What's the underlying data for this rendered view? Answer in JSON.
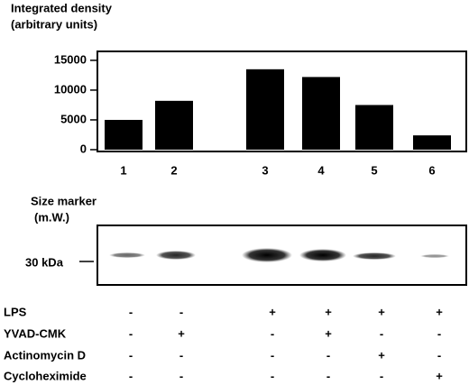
{
  "chart_data": {
    "type": "bar",
    "title": "Integrated density",
    "subtitle": "(arbitrary units)",
    "categories": [
      "1",
      "2",
      "3",
      "4",
      "5",
      "6"
    ],
    "values": [
      5000,
      8200,
      13500,
      12200,
      7500,
      2400
    ],
    "color": "#000000",
    "ylim": [
      0,
      16500
    ],
    "yticks": [
      0,
      5000,
      10000,
      15000
    ],
    "grid": false
  },
  "blot": {
    "title": "Size marker",
    "subtitle": "(m.W.)",
    "marker": "30 kDa"
  },
  "treatments": [
    {
      "name": "LPS",
      "values": [
        "-",
        "-",
        "+",
        "+",
        "+",
        "+"
      ]
    },
    {
      "name": "YVAD-CMK",
      "values": [
        "-",
        "+",
        "-",
        "+",
        "-",
        "-"
      ]
    },
    {
      "name": "Actinomycin D",
      "values": [
        "-",
        "-",
        "-",
        "-",
        "+",
        "-"
      ]
    },
    {
      "name": "Cycloheximide",
      "values": [
        "-",
        "-",
        "-",
        "-",
        "-",
        "+"
      ]
    }
  ]
}
